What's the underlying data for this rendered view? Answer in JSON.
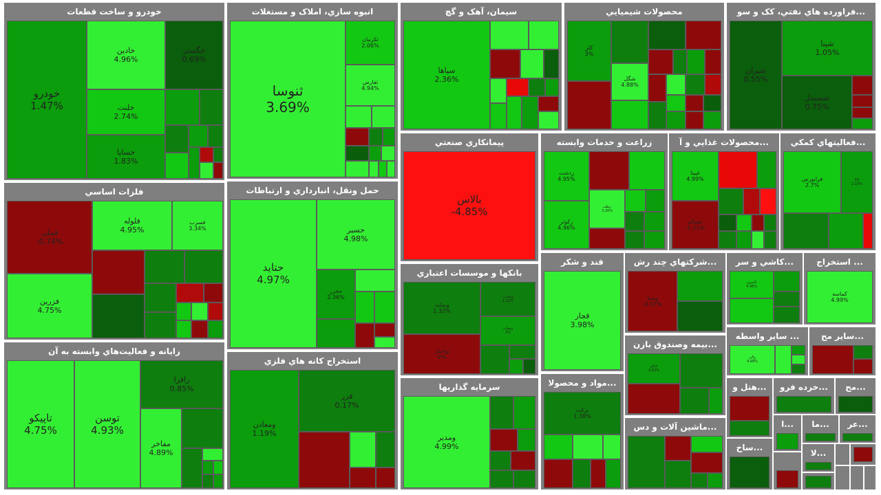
{
  "sectors": {
    "auto": "خودرو و ساخت قطعات",
    "construction": "انبوه سازي، املاک و مستغلات",
    "cement": "سيمان، آهک و گچ",
    "chemical": "محصولات شيميايي",
    "oil": "...فراورده هاي نفتي، کک و سو",
    "contracting": "پيمانکاري صنعتي",
    "agri": "زراعت و خدمات وابسته",
    "food": "...محصولات غذايي و آ",
    "support": "...فعاليتهاي کمکي",
    "metals": "فلزات اساسي",
    "transport": "حمل ونقل، انبارداري و ارتباطات",
    "banks": "بانكها و موسسات اعتباري",
    "sugar": "قند و شکر",
    "multi": "...شرکتهاي چند رش",
    "tile": "...کاشي و سر",
    "mining_other": "... استخراج",
    "insurance": "...بیمه وصندوق بازن",
    "other_brokers": "... ساير واسطه",
    "other_products": "...ساير مح",
    "it": "رايانه و فعاليت‌هاي وابسته به آن",
    "metal_ore": "استخراج كانه هاي فلزي",
    "investment": "سرمايه گذاريها",
    "materials": "...مواد و محصولا",
    "machinery": "...ماشين آلات و دس",
    "hotel": "...هتل و",
    "retail": "...خرده فرو",
    "prod_small": "...مح",
    "s_i": "...ا",
    "s_ma": "...ما",
    "s_ar": "...عر",
    "s_sakh": "...ساخ",
    "s_la": "...لا"
  },
  "stocks": {
    "khodro": {
      "name": "خودرو",
      "change": "1.47%"
    },
    "khodin": {
      "name": "خادين",
      "change": "4.96%"
    },
    "khgostar": {
      "name": "خگستر",
      "change": "0.69%"
    },
    "khlent": {
      "name": "خلنت",
      "change": "2.74%"
    },
    "khsapa": {
      "name": "خساپا",
      "change": "1.83%"
    },
    "shonusa": {
      "name": "ثنوسا",
      "change": "3.69%"
    },
    "sakerman": {
      "name": "ثكرمان",
      "change": "2.06%"
    },
    "sfars": {
      "name": "ثفارس",
      "change": "4.94%"
    },
    "sepaha": {
      "name": "سپاها",
      "change": "2.36%"
    },
    "kalor": {
      "name": "كلر",
      "change": "3%"
    },
    "shegol": {
      "name": "شگل",
      "change": "4.88%"
    },
    "shiran": {
      "name": "شيران",
      "change": "0.55%"
    },
    "shepna": {
      "name": "شپنا",
      "change": "1.05%"
    },
    "shesandel": {
      "name": "شسندل",
      "change": "0.75%"
    },
    "balas": {
      "name": "بالاس",
      "change": "-4.85%"
    },
    "zedasht": {
      "name": "زدشت",
      "change": "4.95%"
    },
    "zekosar": {
      "name": "زكوثر",
      "change": "4.96%"
    },
    "zpetro": {
      "name": "زپطب",
      "change": "3.20%"
    },
    "ghopina": {
      "name": "غپينا",
      "change": "4.99%"
    },
    "ghesalem": {
      "name": "غسالم",
      "change": "-1.21%"
    },
    "faraboors": {
      "name": "فرابورس",
      "change": "2.7%"
    },
    "kala": {
      "name": "كالا",
      "change": "2.13%"
    },
    "fameli": {
      "name": "فملي",
      "change": "-0.74%"
    },
    "folowle": {
      "name": "فلوله",
      "change": "4.95%"
    },
    "fesorb": {
      "name": "فسرب",
      "change": "3.34%"
    },
    "fazar": {
      "name": "فزرين",
      "change": "4.75%"
    },
    "hatid": {
      "name": "حتايد",
      "change": "4.97%"
    },
    "hesir": {
      "name": "حسير",
      "change": "4.98%"
    },
    "hkhaz": {
      "name": "حخزر",
      "change": "2.36%"
    },
    "vbmelat": {
      "name": "وبملت",
      "change": "1.32%"
    },
    "vbtajarat": {
      "name": "وتجارت",
      "change": "1.11%"
    },
    "vbsadr": {
      "name": "وبصادر",
      "change": "3%"
    },
    "vbpasar": {
      "name": "وپاسار",
      "change": "0%"
    },
    "ghejar": {
      "name": "قجار",
      "change": "3.98%"
    },
    "vasin": {
      "name": "وصنا",
      "change": "-0.07%"
    },
    "kemase": {
      "name": "كماسه",
      "change": "4.99%"
    },
    "ketabsh": {
      "name": "كاسپين",
      "change": "4.36%"
    },
    "atkai": {
      "name": "اتكاي",
      "change": "2.62%"
    },
    "valbor": {
      "name": "والبر",
      "change": "4.99%"
    },
    "tapikish": {
      "name": "تاپيكو",
      "change": "4.75%"
    },
    "tosan": {
      "name": "توسن",
      "change": "4.93%"
    },
    "rafra": {
      "name": "رافزا",
      "change": "0.85%"
    },
    "mafakher": {
      "name": "مفاخر",
      "change": "4.89%"
    },
    "vomaaden": {
      "name": "ومعادن",
      "change": "1.19%"
    },
    "fezar": {
      "name": "فزر",
      "change": "0.17%"
    },
    "vemadir": {
      "name": "ومدير",
      "change": "4.99%"
    },
    "barakat": {
      "name": "بركت",
      "change": "1.38%"
    }
  }
}
